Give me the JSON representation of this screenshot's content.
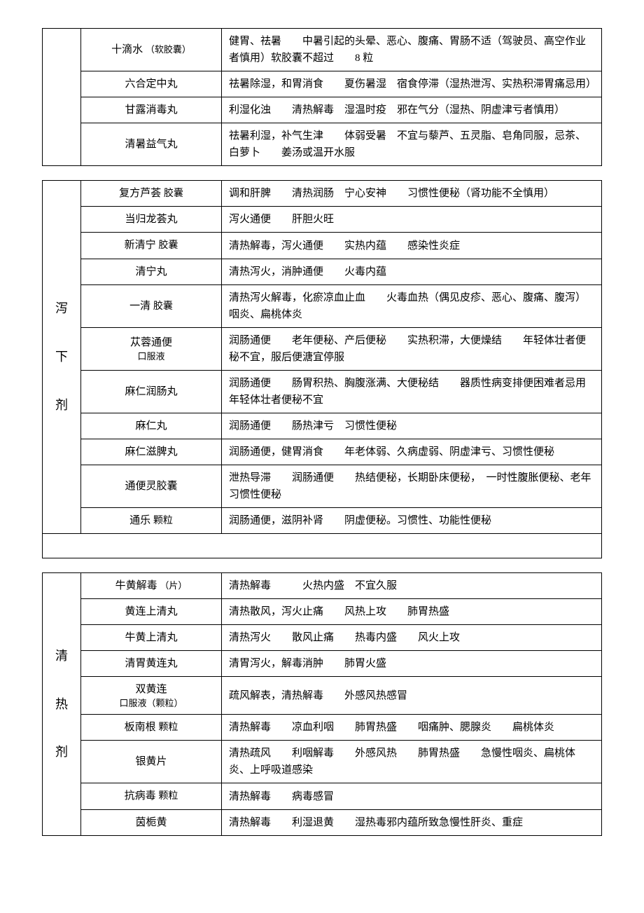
{
  "table1": {
    "category": "",
    "rows": [
      {
        "name": "十滴水",
        "name_suffix": "（软胶囊）",
        "desc": "健胃、祛暑　　中暑引起的头晕、恶心、腹痛、胃肠不适（驾驶员、高空作业者慎用）软胶囊不超过　　8 粒"
      },
      {
        "name": "六合定中丸",
        "desc": "祛暑除湿，和胃消食　　夏伤暑湿　宿食停滞（湿热泄泻、实热积滞胃痛忌用）"
      },
      {
        "name": "甘露消毒丸",
        "desc": "利湿化浊　　清热解毒　湿温时疫　邪在气分（湿热、阴虚津亏者慎用）"
      },
      {
        "name": "清暑益气丸",
        "desc": "祛暑利湿，补气生津　　体弱受暑　不宜与藜芦、五灵脂、皂角同服，忌茶、白萝卜　　姜汤或温开水服"
      }
    ]
  },
  "table2": {
    "category": [
      "泻",
      "下",
      "剂"
    ],
    "rows": [
      {
        "name": "复方芦荟",
        "name_suffix": "胶囊",
        "desc": "调和肝脾　　清热润肠　宁心安神　　习惯性便秘（肾功能不全慎用）"
      },
      {
        "name": "当归龙荟丸",
        "desc": "泻火通便　　肝胆火旺"
      },
      {
        "name": "新清宁",
        "name_suffix": "胶囊",
        "desc": "清热解毒，泻火通便　　实热内蕴　　感染性炎症"
      },
      {
        "name": "清宁丸",
        "desc": "清热泻火，消肿通便　　火毒内蕴"
      },
      {
        "name": "一清",
        "name_suffix": "胶囊",
        "desc": "清热泻火解毒，化瘀凉血止血　　火毒血热（偶见皮疹、恶心、腹痛、腹泻）咽炎、扁桃体炎"
      },
      {
        "name": "苁蓉通便",
        "name_sub": "口服液",
        "desc": "润肠通便　　老年便秘、产后便秘　　实热积滞，大便燥结　　年轻体壮者便秘不宜，服后便溏宜停服"
      },
      {
        "name": "麻仁润肠丸",
        "desc": "润肠通便　　肠胃积热、胸腹涨满、大便秘结　　器质性病变排便困难者忌用　　年轻体壮者便秘不宜"
      },
      {
        "name": "麻仁丸",
        "desc": "润肠通便　　肠热津亏　习惯性便秘"
      },
      {
        "name": "麻仁滋脾丸",
        "desc": "润肠通便，健胃消食　　年老体弱、久病虚弱、阴虚津亏、习惯性便秘"
      },
      {
        "name": "通便灵胶囊",
        "desc": "泄热导滞　　润肠通便　　热结便秘，长期卧床便秘，　一时性腹胀便秘、老年习惯性便秘"
      },
      {
        "name": "通乐",
        "name_suffix": "颗粒",
        "desc": "润肠通便，滋阴补肾　　阴虚便秘。习惯性、功能性便秘"
      }
    ]
  },
  "table3": {
    "category": [
      "清",
      "热",
      "剂"
    ],
    "rows": [
      {
        "name": "牛黄解毒",
        "name_suffix": "（片）",
        "desc": "清热解毒　　　火热内盛　不宜久服"
      },
      {
        "name": "黄连上清丸",
        "desc": "清热散风，泻火止痛　　风热上攻　　肺胃热盛"
      },
      {
        "name": "牛黄上清丸",
        "desc": "清热泻火　　散风止痛　　热毒内盛　　风火上攻"
      },
      {
        "name": "清胃黄连丸",
        "desc": "清胃泻火，解毒消肿　　肺胃火盛"
      },
      {
        "name": "双黄连",
        "name_sub": "口服液（颗粒）",
        "desc": "疏风解表，清热解毒　　外感风热感冒"
      },
      {
        "name": "板南根",
        "name_suffix": "颗粒",
        "desc": "清热解毒　　凉血利咽　　肺胃热盛　　咽痛肿、腮腺炎　　扁桃体炎"
      },
      {
        "name": "银黄片",
        "desc": "清热疏风　　利咽解毒　　外感风热　　肺胃热盛　　急慢性咽炎、扁桃体炎、上呼吸道感染"
      },
      {
        "name": "抗病毒",
        "name_suffix": "颗粒",
        "desc": "清热解毒　　病毒感冒"
      },
      {
        "name": "茵栀黄",
        "desc": "清热解毒　　利湿退黄　　湿热毒邪内蕴所致急慢性肝炎、重症"
      }
    ]
  }
}
